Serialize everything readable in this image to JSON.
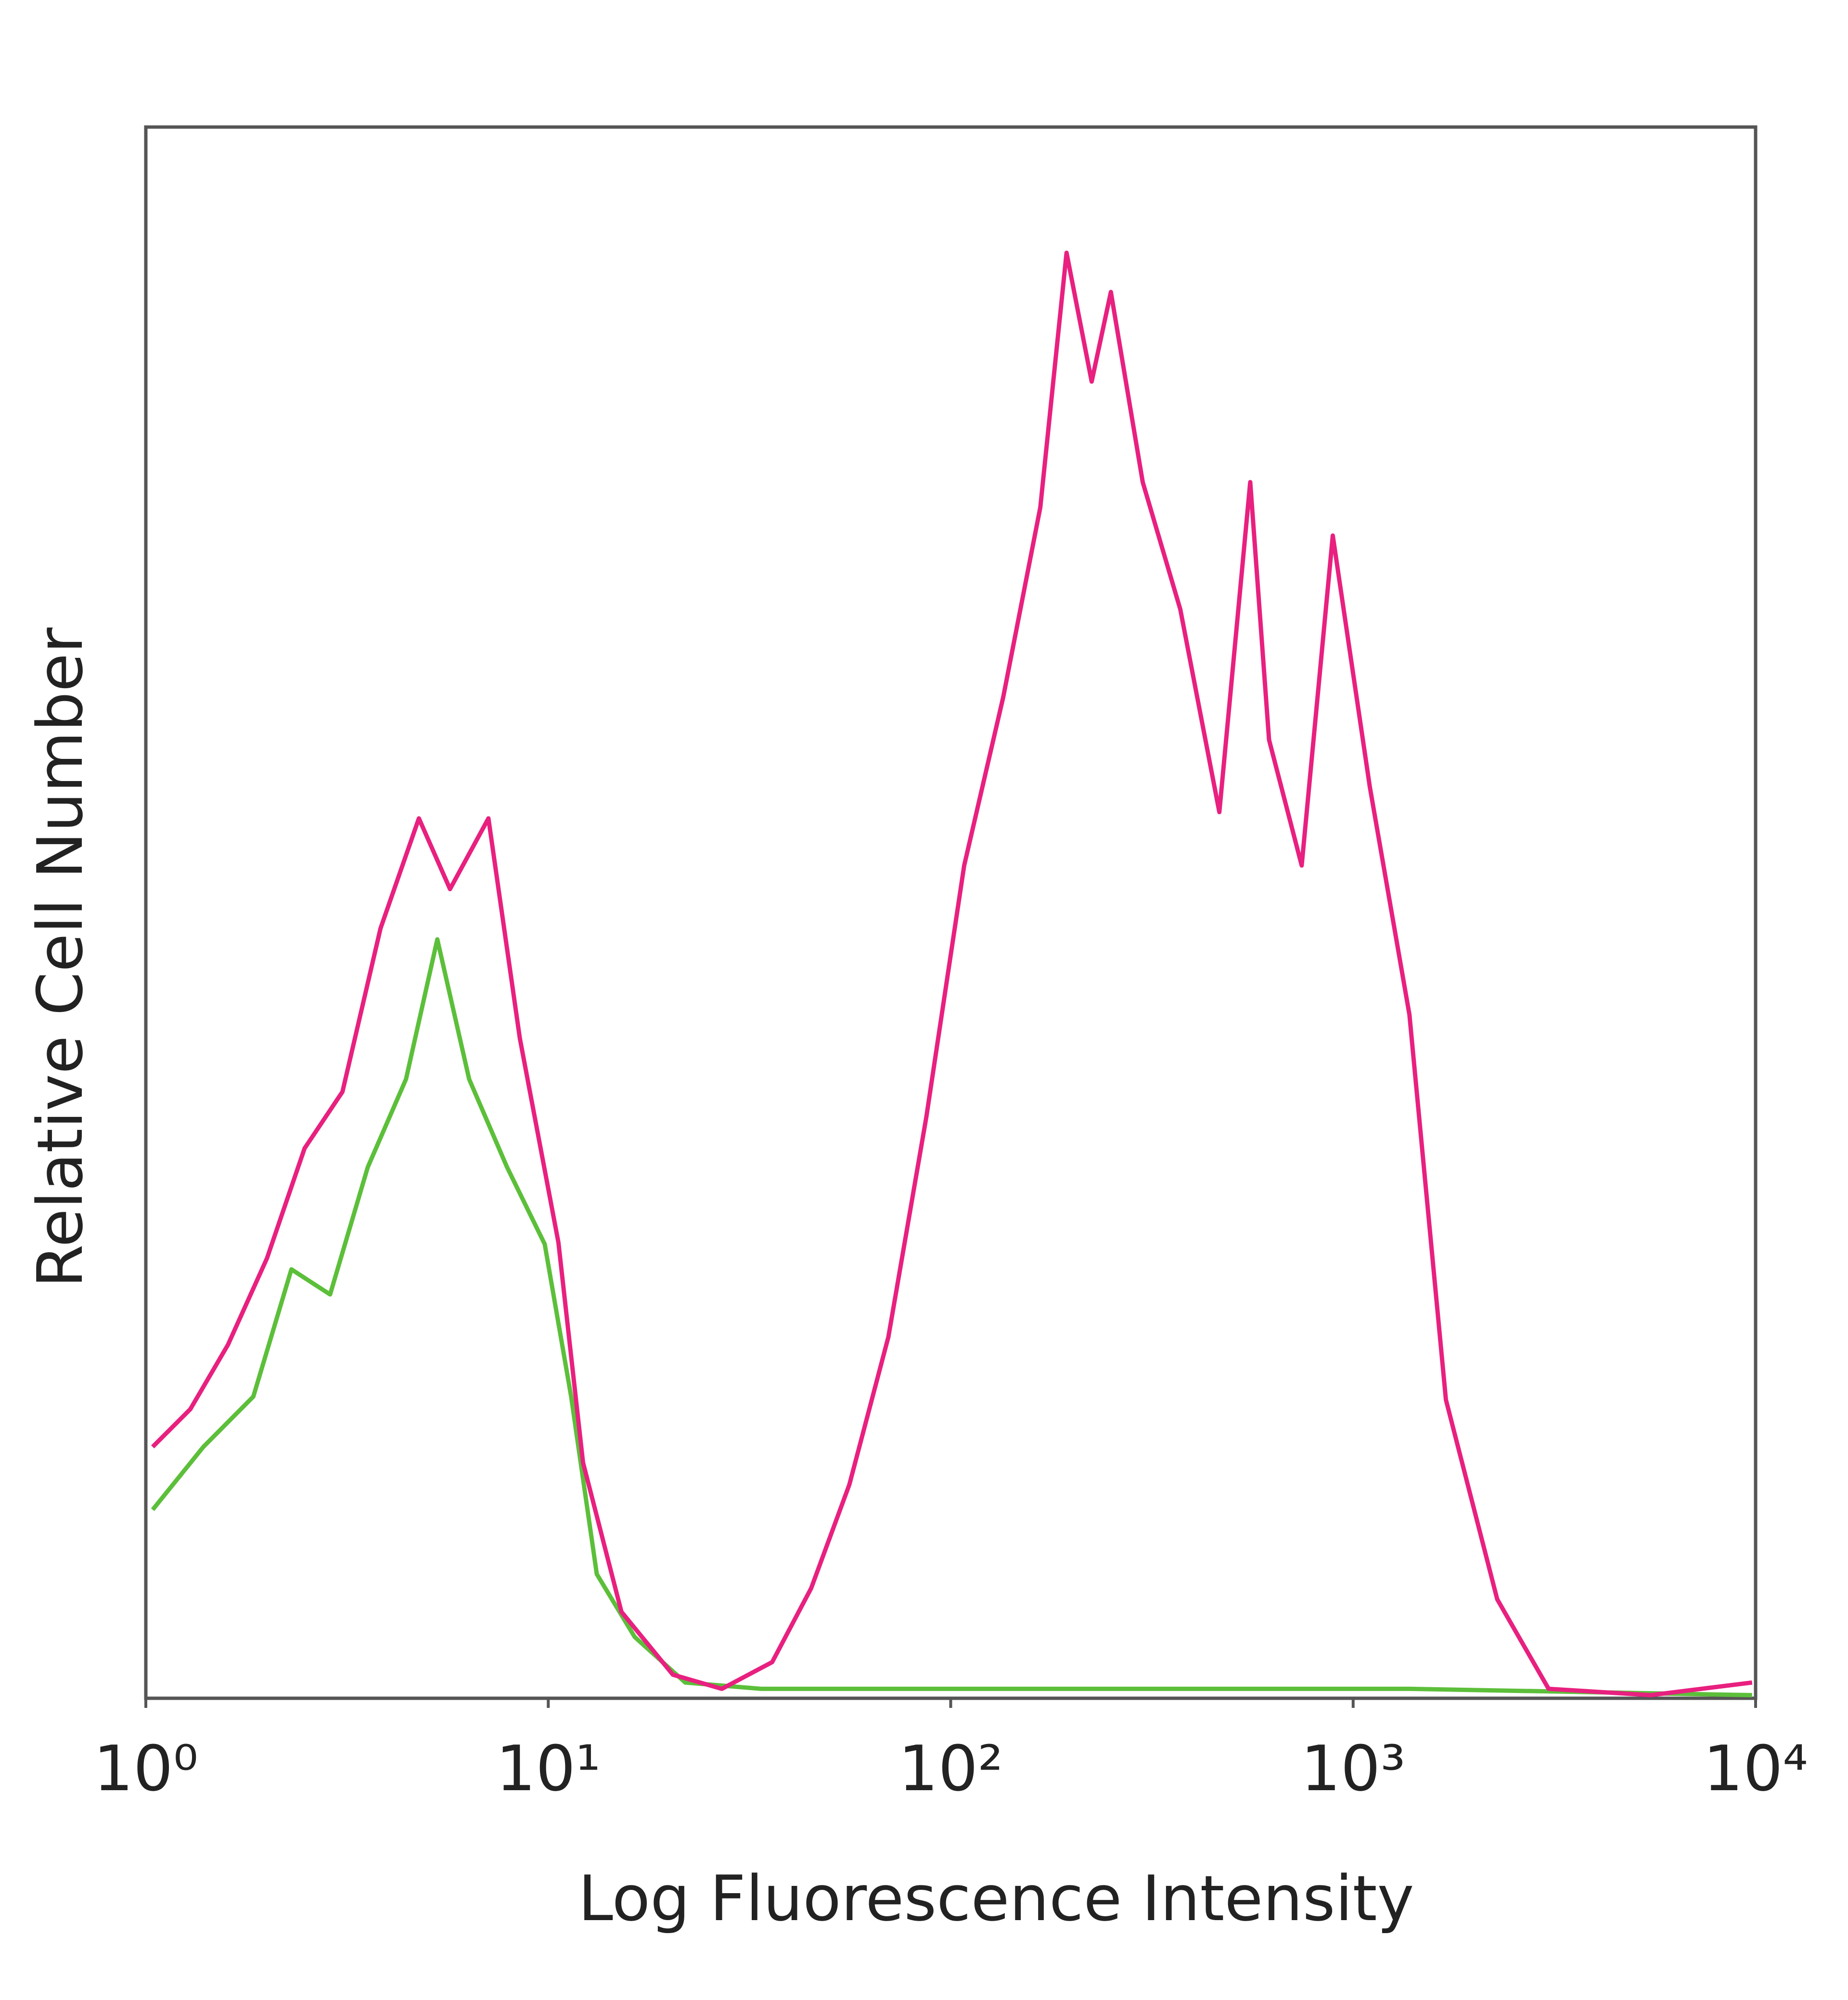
{
  "chart_data": {
    "type": "line",
    "x_label": "Log Fluorescence Intensity",
    "y_label": "Relative Cell Number",
    "xscale": "log",
    "xlim": [
      1,
      10000
    ],
    "xticks": [
      {
        "value": 1,
        "label": "10⁰"
      },
      {
        "value": 10,
        "label": "10¹"
      },
      {
        "value": 100,
        "label": "10²"
      },
      {
        "value": 1000,
        "label": "10³"
      },
      {
        "value": 10000,
        "label": "10⁴"
      }
    ],
    "ylim": [
      0,
      100
    ],
    "series": [
      {
        "color": "#e8207f",
        "x": [
          1.04,
          1.29,
          1.6,
          2.0,
          2.48,
          3.08,
          3.83,
          4.77,
          5.7,
          7.1,
          8.5,
          10.6,
          12.2,
          15.2,
          20.4,
          27,
          36,
          45,
          56,
          70,
          87,
          108,
          135,
          167,
          194,
          224,
          250,
          300,
          372,
          465,
          555,
          618,
          745,
          890,
          1100,
          1380,
          1700,
          2280,
          3060,
          5490,
          9800
        ],
        "values": [
          16,
          18.4,
          22.5,
          28,
          35,
          38.6,
          49,
          56,
          51.5,
          56,
          42,
          29,
          15,
          5.5,
          1.5,
          0.6,
          2.3,
          7,
          13.6,
          23,
          37,
          53,
          63.7,
          75.8,
          92,
          83.8,
          89.5,
          77.4,
          69.3,
          56.4,
          77.4,
          61,
          53,
          74,
          58,
          43.5,
          19,
          6.3,
          0.6,
          0.2,
          1
        ]
      },
      {
        "color": "#5cbf3a",
        "x": [
          1.04,
          1.39,
          1.85,
          2.3,
          2.87,
          3.56,
          4.43,
          5.3,
          6.36,
          7.9,
          9.8,
          11.4,
          13.2,
          16.4,
          21.9,
          33.8,
          108,
          1380,
          9800
        ],
        "values": [
          12,
          16,
          19.2,
          27.3,
          25.7,
          33.8,
          39.4,
          48.3,
          39.4,
          33.8,
          28.9,
          19.2,
          7.9,
          3.9,
          1,
          0.6,
          0.6,
          0.6,
          0.2
        ]
      }
    ]
  }
}
